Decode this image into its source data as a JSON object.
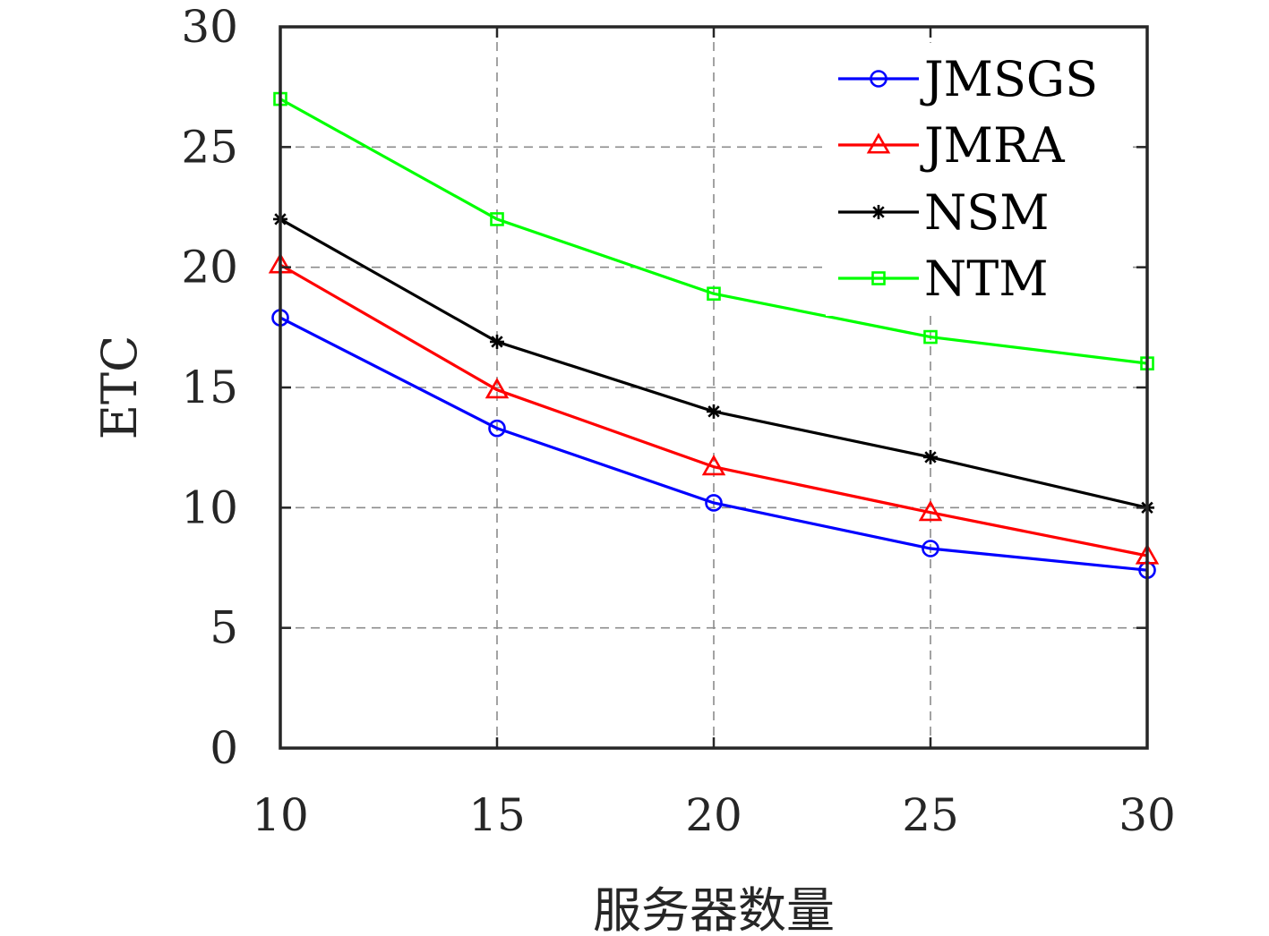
{
  "chart_data": {
    "type": "line",
    "title": "",
    "xlabel": "服务器数量",
    "ylabel": "ETC",
    "x": [
      10,
      15,
      20,
      25,
      30
    ],
    "xlim": [
      10,
      30
    ],
    "ylim": [
      0,
      30
    ],
    "xticks": [
      "10",
      "15",
      "20",
      "25",
      "30"
    ],
    "yticks": [
      "0",
      "5",
      "10",
      "15",
      "20",
      "25",
      "30"
    ],
    "grid": true,
    "legend_position": "top-right",
    "series": [
      {
        "name": "JMSGS",
        "color": "#0000ff",
        "marker": "circle",
        "values": [
          17.9,
          13.3,
          10.2,
          8.3,
          7.4
        ]
      },
      {
        "name": "JMRA",
        "color": "#ff0000",
        "marker": "triangle",
        "values": [
          20.1,
          14.9,
          11.7,
          9.8,
          8.0
        ]
      },
      {
        "name": "NSM",
        "color": "#000000",
        "marker": "asterisk",
        "values": [
          22.0,
          16.9,
          14.0,
          12.1,
          10.0
        ]
      },
      {
        "name": "NTM",
        "color": "#00ff00",
        "marker": "square",
        "values": [
          27.0,
          22.0,
          18.9,
          17.1,
          16.0
        ]
      }
    ]
  }
}
